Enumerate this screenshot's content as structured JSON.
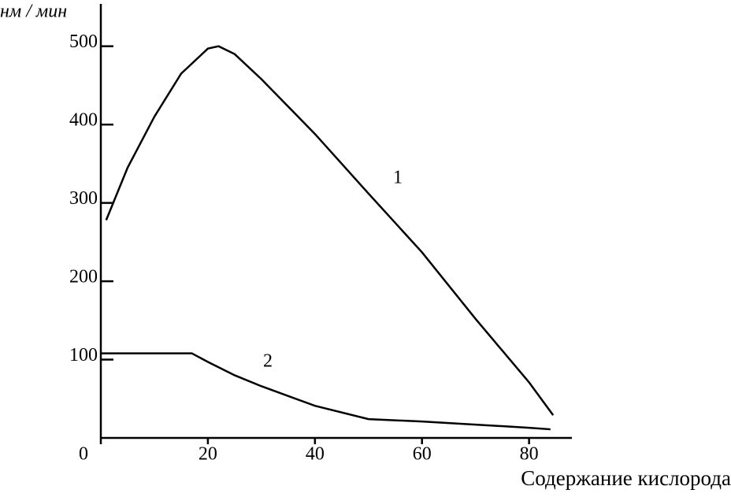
{
  "chart_data": {
    "type": "line",
    "y_label": "нм / мин",
    "x_label": "Содержание кислорода",
    "xlim": [
      0,
      88
    ],
    "xticks": [
      0,
      20,
      40,
      60,
      80
    ],
    "ylim": [
      0,
      554
    ],
    "yticks": [
      100,
      200,
      300,
      400,
      500
    ],
    "series": [
      {
        "name": "1",
        "color": "#000000",
        "x": [
          1,
          5,
          10,
          15,
          20,
          22,
          25,
          30,
          40,
          50,
          60,
          70,
          80,
          84.5
        ],
        "values": [
          278,
          345,
          410,
          465,
          497,
          500,
          490,
          458,
          388,
          312,
          237,
          152,
          71,
          29
        ]
      },
      {
        "name": "2",
        "color": "#000000",
        "x": [
          0,
          17,
          20,
          25,
          30,
          40,
          50,
          60,
          70,
          80,
          84
        ],
        "values": [
          108,
          108,
          97,
          80,
          66,
          41,
          24,
          21,
          17,
          13,
          11
        ]
      }
    ]
  }
}
